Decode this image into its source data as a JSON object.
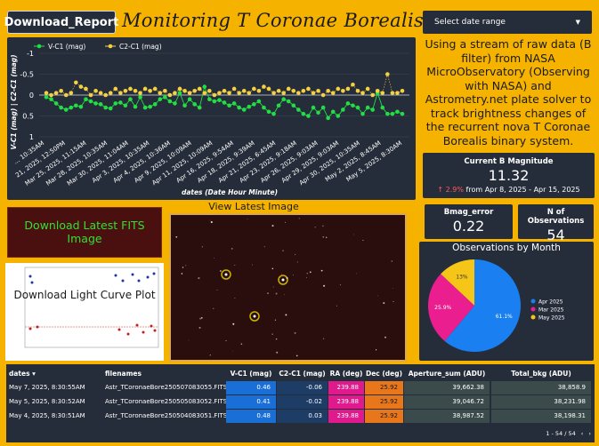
{
  "header": {
    "report_button": "Download_Report",
    "title": "Monitoring T Coronae Borealis (Blaze Star)",
    "date_range_label": "Select date range"
  },
  "description": "Using a stream of raw data (B filter) from NASA MicroObservatory (Observing with NASA) and Astrometry.net plate solver to track brightness changes of the recurrent nova T Coronae Borealis binary system.",
  "cards": {
    "current_mag_label": "Current B Magnitude",
    "current_mag_value": "11.32",
    "current_mag_change": "↑ 2.9%",
    "current_mag_period": "from Apr 8, 2025 - Apr 15, 2025",
    "bmag_error_label": "Bmag_error",
    "bmag_error_value": "0.22",
    "nobs_label": "N of Observations",
    "nobs_value": "54"
  },
  "buttons": {
    "fits": "Download Latest FITS Image",
    "light_curve": "Download Light Curve Plot",
    "latest_image_title": "View Latest Image"
  },
  "colors": {
    "background": "#f5b300",
    "panel": "#262d3a",
    "v_c1": "#22dd44",
    "c2_c1": "#f5d142",
    "pie_apr": "#1a7ff0",
    "pie_mar": "#ea1e8f",
    "pie_may": "#f5c518"
  },
  "chart_data": [
    {
      "type": "line",
      "xlabel": "dates (Date Hour Minute)",
      "ylabel": "V-C1 (mag) | C2-C1 (mag)",
      "ylim": [
        1,
        -1
      ],
      "yticks": [
        "-1",
        "-0.5",
        "0",
        "0.5",
        "1"
      ],
      "grid": true,
      "legend": "top-left",
      "x_tick_labels": [
        "... 10:35AM",
        "21, 2025, 12:50PM",
        "Mar 25, 2025, 11:15AM",
        "Mar 28, 2025, 10:35AM",
        "Mar 30, 2025, 11:04AM",
        "Apr 3, 2025, 10:35AM",
        "Apr 4, 2025, 10:36AM",
        "Apr 9, 2025, 10:09AM",
        "Apr 11, 2025, 10:09AM",
        "Apr 16, 2025, 9:54AM",
        "Apr 18, 2025, 9:39AM",
        "Apr 21, 2025, 6:45AM",
        "Apr 23, 2025, 9:18AM",
        "Apr 26, 2025, 9:03AM",
        "Apr 29, 2025, 9:03AM",
        "Apr 30, 2025, 10:35AM",
        "May 2, 2025, 8:45AM",
        "May 5, 2025, 8:30AM"
      ],
      "series": [
        {
          "name": "V-C1 (mag)",
          "values": [
            0.05,
            0.1,
            0.2,
            0.3,
            0.35,
            0.3,
            0.25,
            0.28,
            0.1,
            0.15,
            0.2,
            0.22,
            0.3,
            0.32,
            0.2,
            0.18,
            0.25,
            0.1,
            0.28,
            0.05,
            0.3,
            0.28,
            0.22,
            0.1,
            0.05,
            0.15,
            0.2,
            -0.05,
            0.25,
            0.1,
            0.22,
            0.3,
            -0.2,
            0.1,
            0.15,
            0.12,
            0.18,
            0.25,
            0.2,
            0.3,
            0.35,
            0.28,
            0.22,
            0.15,
            0.3,
            0.4,
            0.45,
            0.25,
            0.1,
            0.15,
            0.25,
            0.35,
            0.45,
            0.5,
            0.3,
            0.42,
            0.3,
            0.55,
            0.4,
            0.5,
            0.35,
            0.2,
            0.25,
            0.3,
            0.45,
            0.3,
            0.35,
            -0.05,
            0.3,
            0.45,
            0.45,
            0.4,
            0.45
          ]
        },
        {
          "name": "C2-C1 (mag)",
          "values": [
            -0.05,
            0.0,
            -0.05,
            -0.1,
            0.0,
            -0.05,
            -0.3,
            -0.2,
            -0.15,
            0.0,
            -0.1,
            -0.05,
            0.0,
            -0.05,
            -0.15,
            -0.05,
            -0.1,
            -0.15,
            -0.1,
            -0.05,
            -0.15,
            -0.1,
            -0.15,
            -0.05,
            -0.1,
            0.0,
            -0.05,
            -0.15,
            -0.1,
            -0.05,
            -0.1,
            -0.15,
            -0.05,
            -0.1,
            0.0,
            -0.05,
            -0.1,
            -0.05,
            -0.15,
            -0.05,
            -0.1,
            -0.05,
            -0.15,
            -0.1,
            -0.2,
            -0.15,
            -0.05,
            -0.1,
            -0.05,
            -0.15,
            -0.1,
            -0.05,
            -0.1,
            -0.15,
            -0.05,
            -0.1,
            0.0,
            -0.1,
            -0.05,
            -0.15,
            -0.1,
            -0.15,
            -0.25,
            -0.1,
            -0.05,
            -0.15,
            0.0,
            -0.1,
            -0.05,
            -0.5,
            -0.05,
            -0.05,
            -0.1
          ]
        }
      ]
    },
    {
      "type": "pie",
      "title": "Observations by Month",
      "legend": "right",
      "slices": [
        {
          "label": "Apr 2025",
          "value": 61.1,
          "text": "61.1%"
        },
        {
          "label": "Mar 2025",
          "value": 25.9,
          "text": "25.9%"
        },
        {
          "label": "May 2025",
          "value": 13.0,
          "text": "13%"
        }
      ]
    },
    {
      "type": "table",
      "columns": [
        "dates",
        "filenames",
        "V-C1 (mag)",
        "C2-C1 (mag)",
        "RA (deg)",
        "Dec (deg)",
        "Aperture_sum (ADU)",
        "Total_bkg (ADU)"
      ],
      "rows": [
        [
          "May 7, 2025, 8:30:55AM",
          "Astr_TCoronaeBore250507083055.FITS",
          "0.46",
          "-0.06",
          "239.88",
          "25.92",
          "39,662.38",
          "38,858.9"
        ],
        [
          "May 5, 2025, 8:30:52AM",
          "Astr_TCoronaeBore250505083052.FITS",
          "0.41",
          "-0.02",
          "239.88",
          "25.92",
          "39,046.72",
          "38,231.98"
        ],
        [
          "May 4, 2025, 8:30:51AM",
          "Astr_TCoronaeBore250504083051.FITS",
          "0.48",
          "0.03",
          "239.88",
          "25.92",
          "38,987.52",
          "38,198.31"
        ]
      ],
      "pager": "1 - 54 / 54"
    }
  ]
}
